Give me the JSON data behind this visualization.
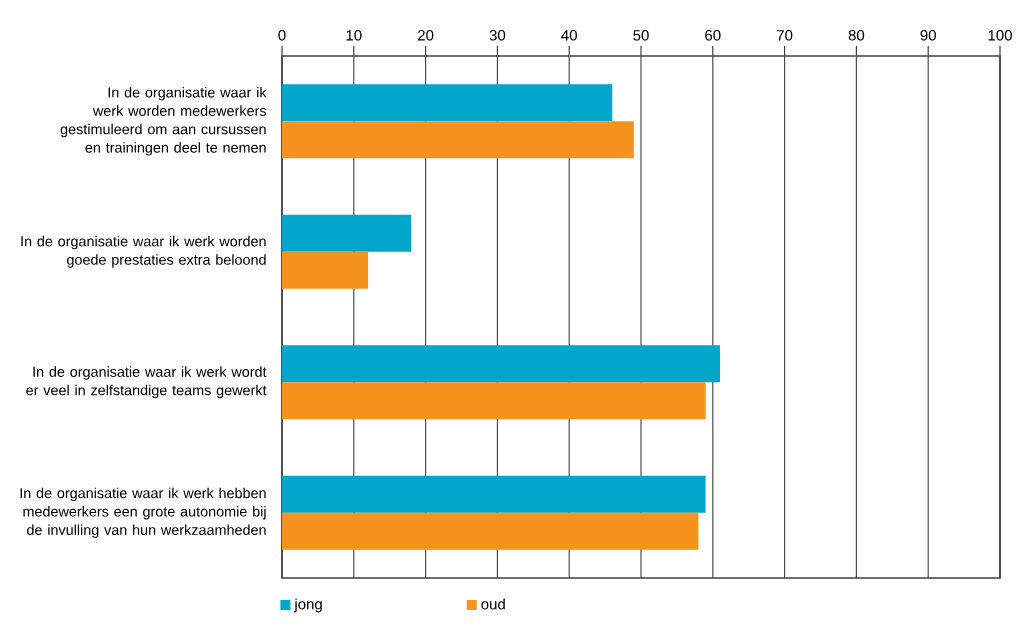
{
  "chart_data": {
    "type": "bar",
    "orientation": "horizontal",
    "categories": [
      "In de organisatie waar ik werk worden medewerkers gestimuleerd om aan cursussen en trainingen deel te nemen",
      "In de organisatie waar ik werk worden goede prestaties extra beloond",
      "In de organisatie waar ik werk wordt er veel in zelfstandige teams gewerkt",
      "In de organisatie waar ik werk hebben medewerkers een grote autonomie bij de invulling van hun werkzaamheden"
    ],
    "series": [
      {
        "name": "jong",
        "color": "#02a6cb",
        "values": [
          46,
          18,
          61,
          59
        ]
      },
      {
        "name": "oud",
        "color": "#f6921e",
        "values": [
          49,
          12,
          59,
          58
        ]
      }
    ],
    "xlim": [
      0,
      100
    ],
    "xticks": [
      0,
      10,
      20,
      30,
      40,
      50,
      60,
      70,
      80,
      90,
      100
    ],
    "grid": "x",
    "legend": "bottom left"
  }
}
